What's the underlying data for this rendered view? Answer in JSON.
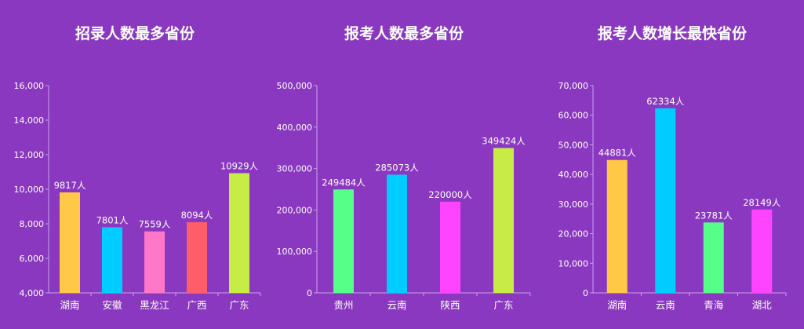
{
  "chart_data": [
    {
      "type": "bar",
      "title": "招录人数最多省份",
      "categories": [
        "湖南",
        "安徽",
        "黑龙江",
        "广西",
        "广东"
      ],
      "values": [
        9817,
        7801,
        7559,
        8094,
        10929
      ],
      "data_labels": [
        "9817人",
        "7801人",
        "7559人",
        "8094人",
        "10929人"
      ],
      "colors": [
        "#ffc846",
        "#00ccff",
        "#ff77c8",
        "#ff5d6a",
        "#c8ec46"
      ],
      "ylim": [
        4000,
        16000
      ],
      "yticks": [
        "4,000",
        "6,000",
        "8,000",
        "10,000",
        "12,000",
        "14,000",
        "16,000"
      ],
      "grid": false
    },
    {
      "type": "bar",
      "title": "报考人数最多省份",
      "categories": [
        "贵州",
        "云南",
        "陕西",
        "广东"
      ],
      "values": [
        249484,
        285073,
        220000,
        349424
      ],
      "data_labels": [
        "249484人",
        "285073人",
        "220000人",
        "349424人"
      ],
      "colors": [
        "#55ff88",
        "#00ccff",
        "#ff44ff",
        "#c8ec46"
      ],
      "ylim": [
        0,
        500000
      ],
      "yticks": [
        "0",
        "100,000",
        "200,000",
        "300,000",
        "400,000",
        "500,000"
      ],
      "grid": false
    },
    {
      "type": "bar",
      "title": "报考人数增长最快省份",
      "categories": [
        "湖南",
        "云南",
        "青海",
        "湖北"
      ],
      "values": [
        44881,
        62334,
        23781,
        28149
      ],
      "data_labels": [
        "44881人",
        "62334人",
        "23781人",
        "28149人"
      ],
      "colors": [
        "#ffc846",
        "#00ccff",
        "#55ff88",
        "#ff44ff"
      ],
      "ylim": [
        0,
        70000
      ],
      "yticks": [
        "0",
        "10,000",
        "20,000",
        "30,000",
        "40,000",
        "50,000",
        "60,000",
        "70,000"
      ],
      "grid": false
    }
  ]
}
